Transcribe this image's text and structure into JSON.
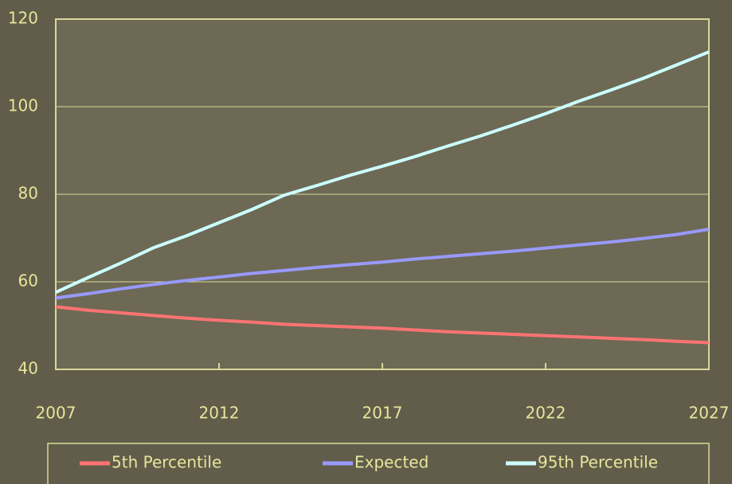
{
  "chart_data": {
    "type": "line",
    "x": [
      2007,
      2008,
      2009,
      2010,
      2011,
      2012,
      2013,
      2014,
      2015,
      2016,
      2017,
      2018,
      2019,
      2020,
      2021,
      2022,
      2023,
      2024,
      2025,
      2026,
      2027
    ],
    "series": [
      {
        "name": "5th Percentile",
        "color": "#ff7373",
        "values": [
          54.3,
          53.5,
          52.9,
          52.3,
          51.7,
          51.2,
          50.8,
          50.3,
          50.0,
          49.7,
          49.4,
          49.0,
          48.6,
          48.3,
          48.0,
          47.7,
          47.4,
          47.1,
          46.8,
          46.4,
          46.1
        ]
      },
      {
        "name": "Expected",
        "color": "#9999ff",
        "values": [
          56.3,
          57.3,
          58.4,
          59.4,
          60.3,
          61.1,
          61.9,
          62.6,
          63.3,
          63.9,
          64.5,
          65.2,
          65.8,
          66.4,
          67.0,
          67.7,
          68.4,
          69.1,
          69.9,
          70.8,
          72.0
        ]
      },
      {
        "name": "95th Percentile",
        "color": "#ccffff",
        "values": [
          57.6,
          61.0,
          64.3,
          67.8,
          70.5,
          73.5,
          76.5,
          79.8,
          82.0,
          84.3,
          86.4,
          88.6,
          91.0,
          93.3,
          95.8,
          98.4,
          101.2,
          103.8,
          106.5,
          109.5,
          112.5
        ]
      }
    ],
    "xlim": [
      2007,
      2027
    ],
    "xticks": [
      2007,
      2012,
      2017,
      2022,
      2027
    ],
    "ylim": [
      40,
      120
    ],
    "yticks": [
      40,
      60,
      80,
      100,
      120
    ],
    "grid": true,
    "legend": "bottom"
  }
}
